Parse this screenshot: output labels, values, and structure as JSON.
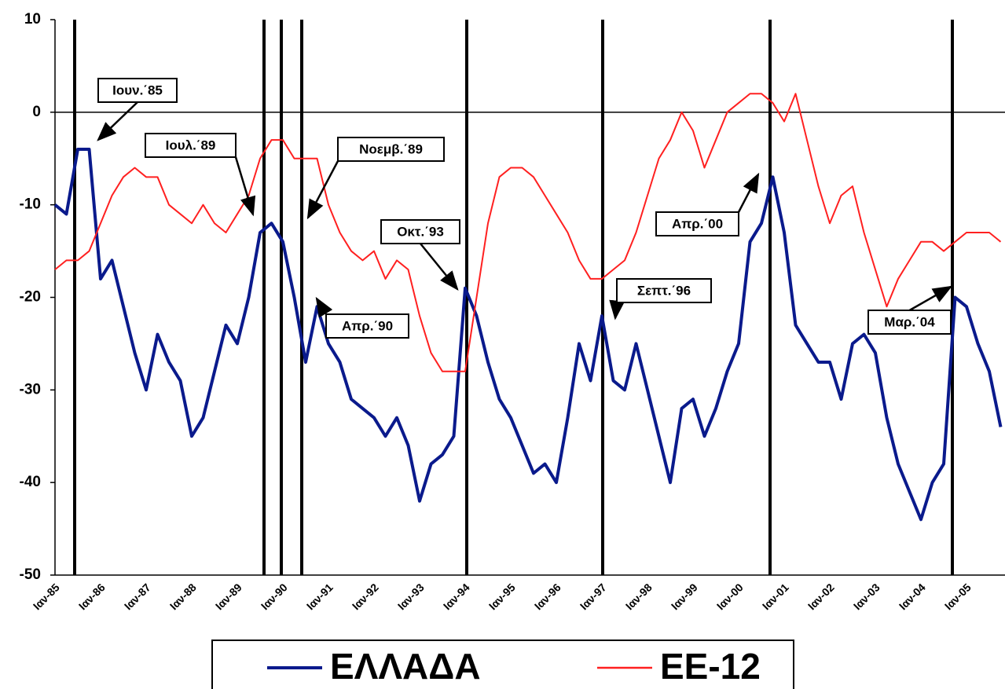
{
  "chart_data": {
    "type": "line",
    "categories": [
      "Ιαν-85",
      null,
      null,
      null,
      "Ιαν-86",
      null,
      null,
      null,
      "Ιαν-87",
      null,
      null,
      null,
      "Ιαν-88",
      null,
      null,
      null,
      "Ιαν-89",
      null,
      null,
      null,
      "Ιαν-90",
      null,
      null,
      null,
      "Ιαν-91",
      null,
      null,
      null,
      "Ιαν-92",
      null,
      null,
      null,
      "Ιαν-93",
      null,
      null,
      null,
      "Ιαν-94",
      null,
      null,
      null,
      "Ιαν-95",
      null,
      null,
      null,
      "Ιαν-96",
      null,
      null,
      null,
      "Ιαν-97",
      null,
      null,
      null,
      "Ιαν-98",
      null,
      null,
      null,
      "Ιαν-99",
      null,
      null,
      null,
      "Ιαν-00",
      null,
      null,
      null,
      "Ιαν-01",
      null,
      null,
      null,
      "Ιαν-02",
      null,
      null,
      null,
      "Ιαν-03",
      null,
      null,
      null,
      "Ιαν-04",
      null,
      null,
      null,
      "Ιαν-05",
      null,
      null,
      null
    ],
    "series": [
      {
        "name": "ΕΛΛΑΔΑ",
        "color": "#0a1a8c",
        "values": [
          -10,
          -11,
          -4,
          -4,
          -18,
          -16,
          -21,
          -26,
          -30,
          -24,
          -27,
          -29,
          -35,
          -33,
          -28,
          -23,
          -25,
          -20,
          -13,
          -12,
          -14,
          -20,
          -27,
          -21,
          -25,
          -27,
          -31,
          -32,
          -33,
          -35,
          -33,
          -36,
          -42,
          -38,
          -37,
          -35,
          -19,
          -22,
          -27,
          -31,
          -33,
          -36,
          -39,
          -38,
          -40,
          -33,
          -25,
          -29,
          -22,
          -29,
          -30,
          -25,
          -30,
          -35,
          -40,
          -32,
          -31,
          -35,
          -32,
          -28,
          -25,
          -14,
          -12,
          -7,
          -13,
          -23,
          -25,
          -27,
          -27,
          -31,
          -25,
          -24,
          -26,
          -33,
          -38,
          -41,
          -44,
          -40,
          -38,
          -20,
          -21,
          -25,
          -28,
          -34
        ]
      },
      {
        "name": "ΕΕ-12",
        "color": "#ff2020",
        "values": [
          -17,
          -16,
          -16,
          -15,
          -12,
          -9,
          -7,
          -6,
          -7,
          -7,
          -10,
          -11,
          -12,
          -10,
          -12,
          -13,
          -11,
          -9,
          -5,
          -3,
          -3,
          -5,
          -5,
          -5,
          -10,
          -13,
          -15,
          -16,
          -15,
          -18,
          -16,
          -17,
          -22,
          -26,
          -28,
          -28,
          -28,
          -20,
          -12,
          -7,
          -6,
          -6,
          -7,
          -9,
          -11,
          -13,
          -16,
          -18,
          -18,
          -17,
          -16,
          -13,
          -9,
          -5,
          -3,
          0,
          -2,
          -6,
          -3,
          0,
          1,
          2,
          2,
          1,
          -1,
          2,
          -3,
          -8,
          -12,
          -9,
          -8,
          -13,
          -17,
          -21,
          -18,
          -16,
          -14,
          -14,
          -15,
          -14,
          -13,
          -13,
          -13,
          -14
        ]
      }
    ],
    "ylim": [
      -50,
      10
    ],
    "yticks": [
      10,
      0,
      -10,
      -20,
      -30,
      -40,
      -50
    ],
    "annotations": [
      "Ιουν.΄85",
      "Ιουλ.΄89",
      "Νοεμβ.΄89",
      "Οκτ.΄93",
      "Απρ.΄90",
      "Σεπτ.΄96",
      "Απρ.΄00",
      "Μαρ.΄04"
    ]
  }
}
